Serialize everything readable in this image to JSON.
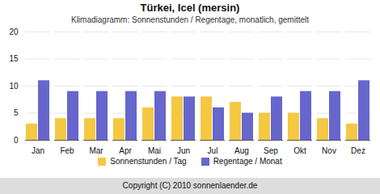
{
  "chart_data": {
    "type": "bar",
    "title": "Türkei, Icel (mersin)",
    "subtitle": "Klimadiagramm: Sonnenstunden / Regentage, monatlich, gemittelt",
    "annotations": [
      "Copyright (C) 2010 sonnenlaender.de"
    ],
    "categories": [
      "Jan",
      "Feb",
      "Mar",
      "Apr",
      "Mai",
      "Jun",
      "Jul",
      "Aug",
      "Sep",
      "Okt",
      "Nov",
      "Dez"
    ],
    "series": [
      {
        "name": "Sonnenstunden / Tag",
        "color": "#f5c842",
        "values": [
          3,
          4,
          4,
          4,
          6,
          8,
          8,
          7,
          5,
          5,
          4,
          3
        ]
      },
      {
        "name": "Regentage / Monat",
        "color": "#6666cc",
        "values": [
          11,
          9,
          9,
          9,
          9,
          8,
          6,
          5,
          8,
          9,
          9,
          11
        ]
      }
    ],
    "ylim": [
      0,
      20
    ],
    "yticks": [
      0,
      5,
      10,
      15,
      20
    ],
    "grid": true,
    "legend": "bottom"
  }
}
